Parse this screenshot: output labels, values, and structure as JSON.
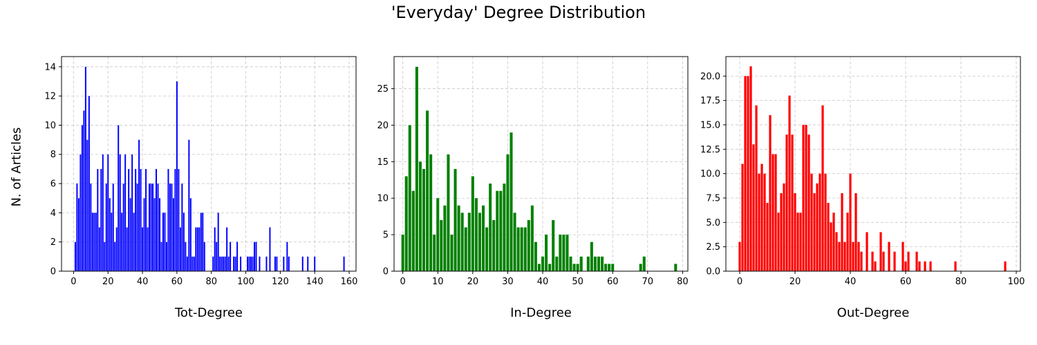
{
  "figure": {
    "title": "'Everyday' Degree Distribution",
    "ylabel": "N. of Articles"
  },
  "chart_data": [
    {
      "type": "bar",
      "xlabel": "Tot-Degree",
      "ylabel": "N. of Articles",
      "color": "#0000ff",
      "xlim": [
        -7,
        164
      ],
      "ylim": [
        0,
        14.7
      ],
      "xticks": [
        0,
        20,
        40,
        60,
        80,
        100,
        120,
        140,
        160
      ],
      "yticks": [
        0,
        2,
        4,
        6,
        8,
        10,
        12,
        14
      ],
      "ytick_labels": [
        "0",
        "2",
        "4",
        "6",
        "8",
        "10",
        "12",
        "14"
      ],
      "grid": true,
      "x": [
        1,
        2,
        3,
        4,
        5,
        6,
        7,
        8,
        9,
        10,
        11,
        12,
        13,
        14,
        15,
        16,
        17,
        18,
        19,
        20,
        21,
        22,
        23,
        24,
        25,
        26,
        27,
        28,
        29,
        30,
        31,
        32,
        33,
        34,
        35,
        36,
        37,
        38,
        39,
        40,
        41,
        42,
        43,
        44,
        45,
        46,
        47,
        48,
        49,
        50,
        51,
        52,
        53,
        54,
        55,
        56,
        57,
        58,
        59,
        60,
        61,
        62,
        63,
        64,
        65,
        66,
        67,
        68,
        69,
        70,
        71,
        72,
        73,
        74,
        75,
        76,
        81,
        82,
        83,
        84,
        85,
        86,
        87,
        88,
        89,
        90,
        91,
        93,
        94,
        95,
        97,
        101,
        102,
        103,
        104,
        105,
        106,
        108,
        112,
        114,
        117,
        118,
        122,
        124,
        125,
        133,
        136,
        140,
        157
      ],
      "y": [
        2,
        6,
        5,
        8,
        10,
        11,
        14,
        9,
        12,
        6,
        4,
        4,
        4,
        7,
        3,
        7,
        8,
        2,
        6,
        8,
        5,
        4,
        6,
        2,
        3,
        10,
        8,
        4,
        6,
        8,
        3,
        7,
        5,
        8,
        4,
        7,
        6,
        9,
        7,
        3,
        5,
        7,
        3,
        6,
        6,
        6,
        5,
        7,
        6,
        5,
        2,
        4,
        4,
        2,
        7,
        6,
        6,
        5,
        7,
        13,
        7,
        3,
        6,
        4,
        2,
        1,
        9,
        5,
        1,
        1,
        3,
        3,
        3,
        4,
        4,
        2,
        1,
        3,
        2,
        4,
        1,
        1,
        1,
        1,
        3,
        1,
        2,
        1,
        1,
        2,
        1,
        1,
        1,
        1,
        1,
        2,
        2,
        1,
        1,
        3,
        1,
        1,
        1,
        2,
        1,
        1,
        1,
        1,
        1
      ]
    },
    {
      "type": "bar",
      "xlabel": "In-Degree",
      "color": "#008000",
      "xlim": [
        -2.5,
        81.5
      ],
      "ylim": [
        0,
        29.4
      ],
      "xticks": [
        0,
        10,
        20,
        30,
        40,
        50,
        60,
        70,
        80
      ],
      "yticks": [
        0,
        5,
        10,
        15,
        20,
        25
      ],
      "ytick_labels": [
        "0",
        "5",
        "10",
        "15",
        "20",
        "25"
      ],
      "grid": true,
      "x": [
        0,
        1,
        2,
        3,
        4,
        5,
        6,
        7,
        8,
        9,
        10,
        11,
        12,
        13,
        14,
        15,
        16,
        17,
        18,
        19,
        20,
        21,
        22,
        23,
        24,
        25,
        26,
        27,
        28,
        29,
        30,
        31,
        32,
        33,
        34,
        35,
        36,
        37,
        38,
        39,
        40,
        41,
        42,
        43,
        44,
        45,
        46,
        47,
        48,
        49,
        50,
        51,
        53,
        54,
        55,
        56,
        57,
        58,
        59,
        60,
        68,
        69,
        78
      ],
      "y": [
        5,
        13,
        20,
        11,
        28,
        15,
        14,
        22,
        16,
        5,
        10,
        7,
        9,
        16,
        5,
        14,
        9,
        8,
        6,
        8,
        13,
        10,
        8,
        9,
        6,
        12,
        7,
        11,
        11,
        12,
        16,
        19,
        8,
        6,
        6,
        6,
        7,
        9,
        4,
        1,
        2,
        5,
        1,
        7,
        2,
        5,
        5,
        5,
        2,
        1,
        1,
        2,
        2,
        4,
        2,
        2,
        2,
        1,
        1,
        1,
        1,
        2,
        1
      ]
    },
    {
      "type": "bar",
      "xlabel": "Out-Degree",
      "color": "#ff0000",
      "xlim": [
        -5,
        101.5
      ],
      "ylim": [
        0,
        22.0
      ],
      "xticks": [
        0,
        20,
        40,
        60,
        80,
        100
      ],
      "yticks": [
        0,
        2.5,
        5,
        7.5,
        10,
        12.5,
        15,
        17.5,
        20
      ],
      "ytick_labels": [
        "0.0",
        "2.5",
        "5.0",
        "7.5",
        "10.0",
        "12.5",
        "15.0",
        "17.5",
        "20.0"
      ],
      "grid": true,
      "x": [
        0,
        1,
        2,
        3,
        4,
        5,
        6,
        7,
        8,
        9,
        10,
        11,
        12,
        13,
        14,
        15,
        16,
        17,
        18,
        19,
        20,
        21,
        22,
        23,
        24,
        25,
        26,
        27,
        28,
        29,
        30,
        31,
        32,
        33,
        34,
        35,
        36,
        37,
        38,
        39,
        40,
        41,
        42,
        43,
        44,
        46,
        48,
        49,
        51,
        52,
        54,
        56,
        59,
        60,
        61,
        64,
        65,
        67,
        69,
        78,
        96
      ],
      "y": [
        3,
        11,
        20,
        20,
        21,
        13,
        17,
        10,
        11,
        10,
        7,
        16,
        12,
        12,
        6,
        8,
        9,
        14,
        18,
        14,
        8,
        6,
        6,
        15,
        15,
        14,
        10,
        8,
        9,
        10,
        17,
        10,
        7,
        5,
        6,
        4,
        3,
        8,
        3,
        6,
        10,
        3,
        8,
        3,
        2,
        4,
        2,
        1,
        4,
        2,
        3,
        2,
        3,
        1,
        2,
        2,
        1,
        1,
        1,
        1,
        1
      ]
    }
  ]
}
